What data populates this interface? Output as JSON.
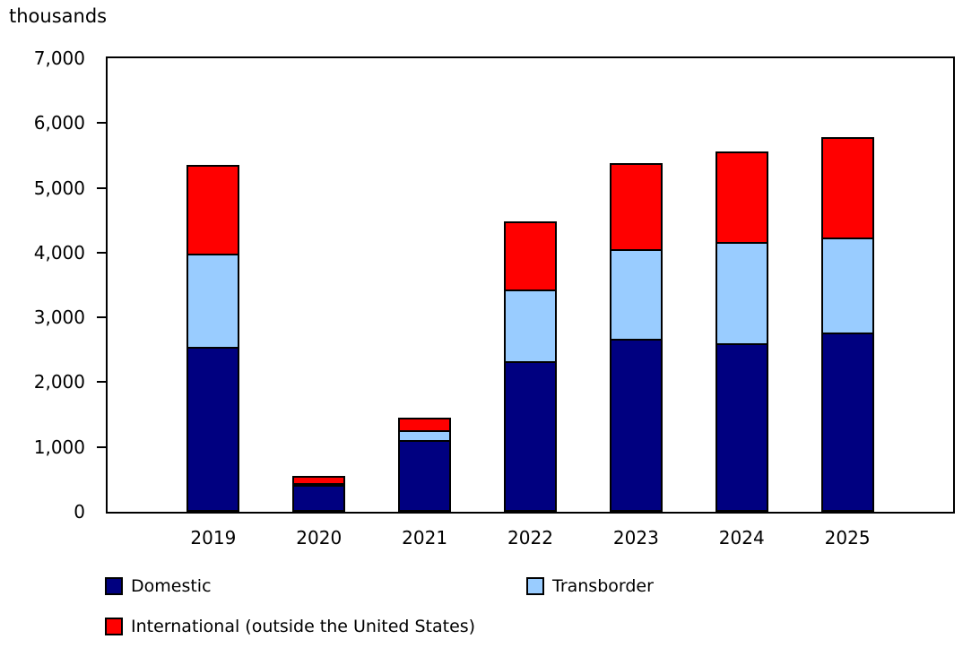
{
  "title": "thousands",
  "colors": {
    "domestic": "#000080",
    "transborder": "#99CCFF",
    "international": "#FF0000",
    "axis": "#000000",
    "background": "#FFFFFF"
  },
  "y_axis": {
    "ticks": [
      {
        "label": "7,000",
        "value": 7000
      },
      {
        "label": "6,000",
        "value": 6000
      },
      {
        "label": "5,000",
        "value": 5000
      },
      {
        "label": "4,000",
        "value": 4000
      },
      {
        "label": "3,000",
        "value": 3000
      },
      {
        "label": "2,000",
        "value": 2000
      },
      {
        "label": "1,000",
        "value": 1000
      },
      {
        "label": "0",
        "value": 0
      }
    ]
  },
  "chart_data": {
    "type": "bar",
    "stacked": true,
    "title": "thousands",
    "xlabel": "",
    "ylabel": "thousands",
    "ylim": [
      0,
      7000
    ],
    "grid": false,
    "legend_position": "bottom",
    "categories": [
      "2019",
      "2020",
      "2021",
      "2022",
      "2023",
      "2024",
      "2025"
    ],
    "series": [
      {
        "name": "Domestic",
        "color": "#000080",
        "values": [
          2540,
          412,
          1112,
          2320,
          2676,
          2608,
          2770
        ]
      },
      {
        "name": "Transborder",
        "color": "#99CCFF",
        "values": [
          1470,
          55,
          178,
          1139,
          1400,
          1578,
          1490
        ]
      },
      {
        "name": "International (outside the United States)",
        "color": "#FF0000",
        "values": [
          1400,
          137,
          220,
          1084,
          1359,
          1427,
          1575
        ]
      }
    ],
    "totals": [
      5410,
      604,
      1510,
      4543,
      5435,
      5613,
      5835
    ]
  },
  "legend": {
    "items": [
      {
        "label": "Domestic",
        "color": "#000080"
      },
      {
        "label": "Transborder",
        "color": "#99CCFF"
      },
      {
        "label": "International (outside the United States)",
        "color": "#FF0000"
      }
    ]
  }
}
